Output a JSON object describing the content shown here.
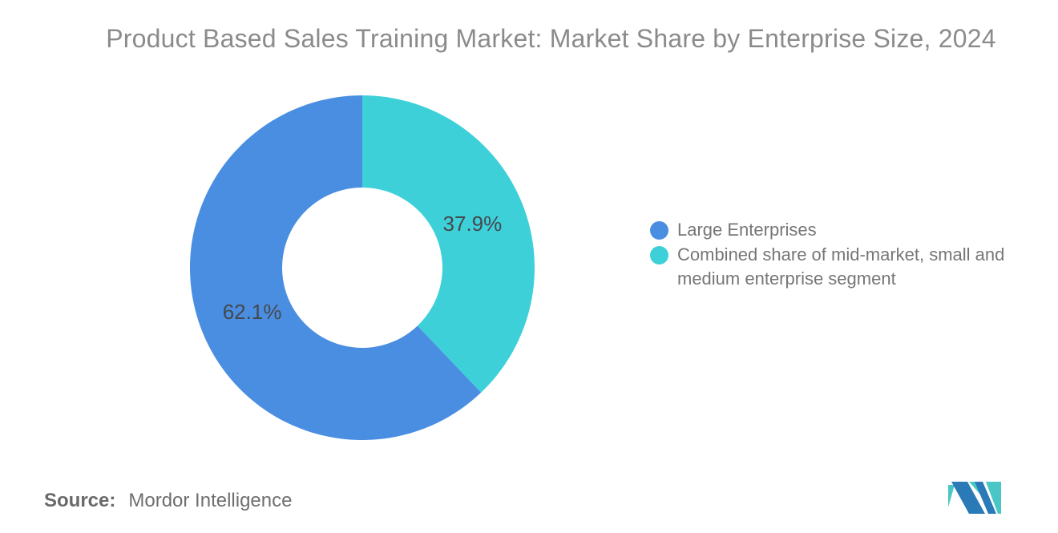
{
  "chart_data": {
    "type": "pie",
    "subtype": "donut",
    "title": "Product Based Sales Training Market: Market Share by Enterprise Size, 2024",
    "unit": "%",
    "direction": "clockwise",
    "start_angle_deg_from_top": 0,
    "inner_radius_ratio": 0.465,
    "slices_clockwise_from_top": [
      {
        "id": "combined-sme",
        "name": "Combined share of mid-market, small and medium enterprise segment",
        "value": 37.9,
        "label": "37.9%",
        "color": "#3DD0D9"
      },
      {
        "id": "large-enterprises",
        "name": "Large Enterprises",
        "value": 62.1,
        "label": "62.1%",
        "color": "#4A8EE2"
      }
    ],
    "slice_label_color": "#45484C",
    "legend_position": "right",
    "legend": [
      {
        "text": "Large Enterprises",
        "color": "#4A8EE2"
      },
      {
        "text": "Combined share of mid-market, small and medium enterprise segment",
        "color": "#3DD0D9"
      }
    ]
  },
  "source": {
    "prefix": "Source:",
    "text": "Mordor Intelligence"
  },
  "logo": {
    "name": "Mordor Intelligence logo",
    "blue": "#2A7AB8",
    "teal": "#4AC6C6"
  }
}
